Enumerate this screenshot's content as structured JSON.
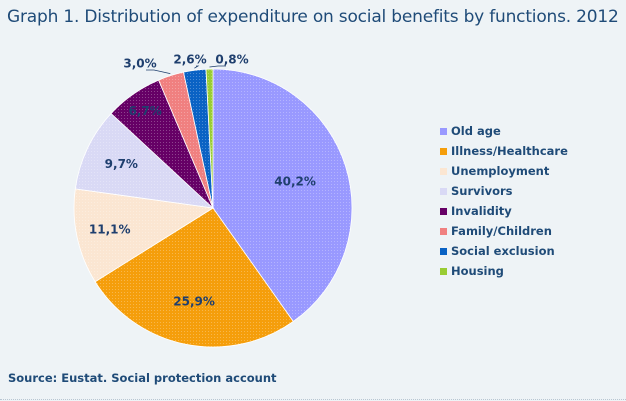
{
  "chart_data": {
    "type": "pie",
    "title": "Graph 1. Distribution of expenditure on social benefits by functions. 2012",
    "source": "Source: Eustat. Social protection account",
    "legend_position": "right",
    "slices": [
      {
        "label": "Old age",
        "value": 40.2,
        "display": "40,2%",
        "color": "#9999ff"
      },
      {
        "label": "Illness/Healthcare",
        "value": 25.9,
        "display": "25,9%",
        "color": "#f59e0b"
      },
      {
        "label": "Unemployment",
        "value": 11.1,
        "display": "11,1%",
        "color": "#fbe6d2"
      },
      {
        "label": "Survivors",
        "value": 9.7,
        "display": "9,7%",
        "color": "#d9d9f5"
      },
      {
        "label": "Invalidity",
        "value": 6.7,
        "display": "6,7%",
        "color": "#660066"
      },
      {
        "label": "Family/Children",
        "value": 3.0,
        "display": "3,0%",
        "color": "#f08080"
      },
      {
        "label": "Social exclusion",
        "value": 2.6,
        "display": "2,6%",
        "color": "#0a62c4"
      },
      {
        "label": "Housing",
        "value": 0.8,
        "display": "0,8%",
        "color": "#99cc33"
      }
    ]
  }
}
